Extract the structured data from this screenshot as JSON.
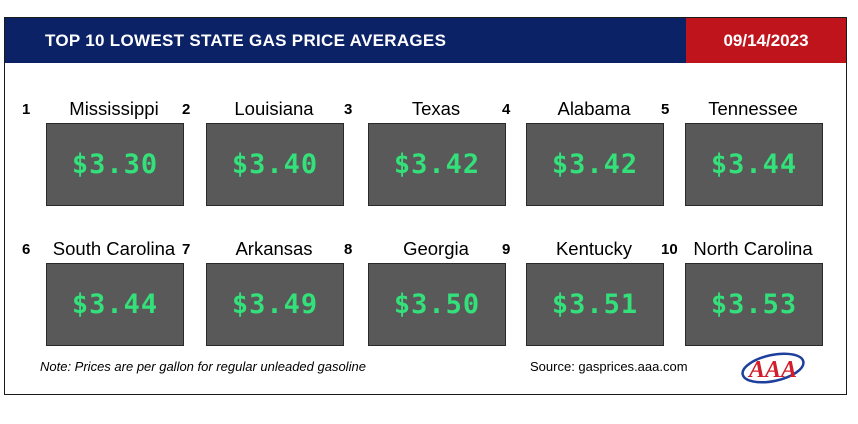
{
  "header": {
    "title": "TOP 10 LOWEST STATE GAS PRICE AVERAGES",
    "date": "09/14/2023"
  },
  "states": [
    {
      "rank": "1",
      "name": "Mississippi",
      "price": "$3.30"
    },
    {
      "rank": "2",
      "name": "Louisiana",
      "price": "$3.40"
    },
    {
      "rank": "3",
      "name": "Texas",
      "price": "$3.42"
    },
    {
      "rank": "4",
      "name": "Alabama",
      "price": "$3.42"
    },
    {
      "rank": "5",
      "name": "Tennessee",
      "price": "$3.44"
    },
    {
      "rank": "6",
      "name": "South Carolina",
      "price": "$3.44"
    },
    {
      "rank": "7",
      "name": "Arkansas",
      "price": "$3.49"
    },
    {
      "rank": "8",
      "name": "Georgia",
      "price": "$3.50"
    },
    {
      "rank": "9",
      "name": "Kentucky",
      "price": "$3.51"
    },
    {
      "rank": "10",
      "name": "North Carolina",
      "price": "$3.53"
    }
  ],
  "footer": {
    "note": "Note: Prices are per gallon for regular unleaded gasoline",
    "source": "Source: gasprices.aaa.com",
    "logo_text": "AAA"
  },
  "colors": {
    "header_bg": "#0c2266",
    "date_bg": "#c0141c",
    "price_box_bg": "#595959",
    "price_text": "#33e07a"
  }
}
